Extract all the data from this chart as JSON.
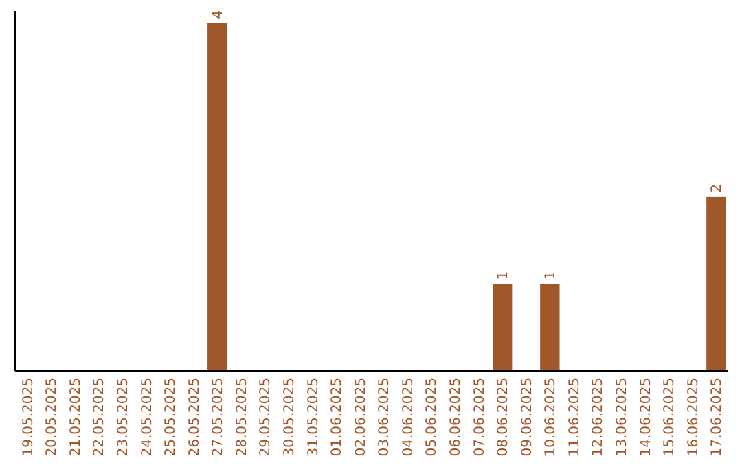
{
  "chart_data": {
    "type": "bar",
    "categories": [
      "19.05.2025",
      "20.05.2025",
      "21.05.2025",
      "22.05.2025",
      "23.05.2025",
      "24.05.2025",
      "25.05.2025",
      "26.05.2025",
      "27.05.2025",
      "28.05.2025",
      "29.05.2025",
      "30.05.2025",
      "31.05.2025",
      "01.06.2025",
      "02.06.2025",
      "03.06.2025",
      "04.06.2025",
      "05.06.2025",
      "06.06.2025",
      "07.06.2025",
      "08.06.2025",
      "09.06.2025",
      "10.06.2025",
      "11.06.2025",
      "12.06.2025",
      "13.06.2025",
      "14.06.2025",
      "15.06.2025",
      "16.06.2025",
      "17.06.2025"
    ],
    "values": [
      0,
      0,
      0,
      0,
      0,
      0,
      0,
      0,
      4,
      0,
      0,
      0,
      0,
      0,
      0,
      0,
      0,
      0,
      0,
      0,
      1,
      0,
      1,
      0,
      0,
      0,
      0,
      0,
      0,
      2
    ],
    "value_labels": [
      null,
      null,
      null,
      null,
      null,
      null,
      null,
      null,
      "4",
      null,
      null,
      null,
      null,
      null,
      null,
      null,
      null,
      null,
      null,
      null,
      "1",
      null,
      "1",
      null,
      null,
      null,
      null,
      null,
      null,
      "2"
    ],
    "color": "#a0572a",
    "tick_labels": "x",
    "grid": false
  }
}
